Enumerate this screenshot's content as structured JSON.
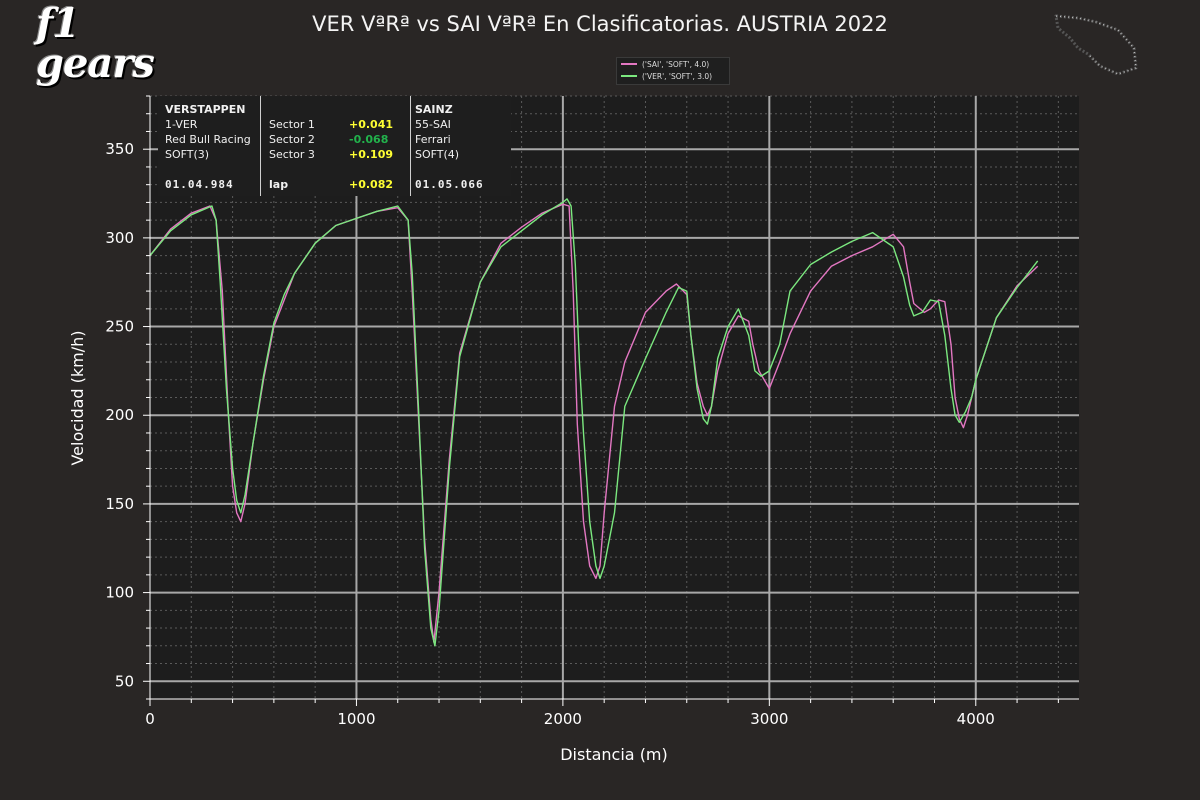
{
  "logo": {
    "text": "f1 gears"
  },
  "title": "VER VªRª vs SAI VªRª En Clasificatorias. AUSTRIA 2022",
  "legend": [
    {
      "label": "('SAI', 'SOFT', 4.0)",
      "color": "#e377c2"
    },
    {
      "label": "('VER', 'SOFT', 3.0)",
      "color": "#7be87f"
    }
  ],
  "infobox": {
    "driver1": {
      "name": "VERSTAPPEN",
      "code": "1-VER",
      "team": "Red Bull Racing",
      "tyre": "SOFT(3)",
      "lap_time": "01.04.984"
    },
    "driver2": {
      "name": "SAINZ",
      "code": "55-SAI",
      "team": "Ferrari",
      "tyre": "SOFT(4)",
      "lap_time": "01.05.066"
    },
    "sectors": [
      {
        "label": "Sector 1",
        "delta": "+0.041",
        "color": "#ffff33"
      },
      {
        "label": "Sector 2",
        "delta": "-0.068",
        "color": "#22b24c"
      },
      {
        "label": "Sector 3",
        "delta": "+0.109",
        "color": "#ffff33"
      }
    ],
    "lap": {
      "label": "lap",
      "delta": "+0.082",
      "color": "#ffff33"
    }
  },
  "chart_data": {
    "type": "line",
    "title": "VER VªRª vs SAI VªRª En Clasificatorias. AUSTRIA 2022",
    "xlabel": "Distancia (m)",
    "ylabel": "Velocidad (km/h)",
    "xlim": [
      0,
      4500
    ],
    "ylim": [
      40,
      380
    ],
    "xticks": [
      0,
      1000,
      2000,
      3000,
      4000
    ],
    "yticks": [
      50,
      100,
      150,
      200,
      250,
      300,
      350
    ],
    "grid": true,
    "legend_position": "top-center",
    "series": [
      {
        "name": "('SAI', 'SOFT', 4.0)",
        "color": "#e377c2",
        "x": [
          0,
          100,
          200,
          290,
          320,
          350,
          380,
          400,
          420,
          440,
          460,
          500,
          550,
          600,
          650,
          700,
          800,
          900,
          1000,
          1100,
          1200,
          1250,
          1270,
          1300,
          1330,
          1360,
          1375,
          1400,
          1450,
          1500,
          1600,
          1700,
          1800,
          1900,
          2000,
          2030,
          2050,
          2070,
          2100,
          2130,
          2160,
          2180,
          2200,
          2250,
          2300,
          2400,
          2500,
          2550,
          2600,
          2620,
          2650,
          2680,
          2700,
          2720,
          2750,
          2800,
          2850,
          2900,
          2920,
          2950,
          3000,
          3050,
          3100,
          3200,
          3300,
          3400,
          3500,
          3600,
          3650,
          3680,
          3700,
          3750,
          3780,
          3820,
          3850,
          3880,
          3900,
          3920,
          3940,
          3960,
          4000,
          4100,
          4200,
          4300
        ],
        "y": [
          290,
          305,
          314,
          318,
          310,
          270,
          200,
          160,
          145,
          140,
          150,
          185,
          220,
          250,
          265,
          280,
          297,
          307,
          311,
          315,
          317,
          310,
          270,
          200,
          130,
          85,
          72,
          100,
          175,
          235,
          275,
          297,
          306,
          314,
          319,
          318,
          270,
          195,
          140,
          115,
          108,
          115,
          145,
          205,
          230,
          258,
          270,
          274,
          268,
          245,
          218,
          205,
          200,
          205,
          225,
          246,
          256,
          253,
          240,
          225,
          215,
          230,
          246,
          270,
          284,
          290,
          295,
          302,
          295,
          275,
          263,
          258,
          260,
          265,
          264,
          240,
          210,
          198,
          193,
          200,
          220,
          255,
          273,
          284
        ]
      },
      {
        "name": "('VER', 'SOFT', 3.0)",
        "color": "#7be87f",
        "x": [
          0,
          100,
          200,
          300,
          320,
          340,
          370,
          400,
          420,
          440,
          460,
          500,
          550,
          600,
          650,
          700,
          800,
          900,
          1000,
          1100,
          1200,
          1250,
          1270,
          1300,
          1330,
          1360,
          1380,
          1400,
          1450,
          1500,
          1600,
          1700,
          1800,
          1900,
          2000,
          2020,
          2040,
          2060,
          2080,
          2100,
          2130,
          2160,
          2180,
          2200,
          2250,
          2300,
          2400,
          2500,
          2560,
          2600,
          2620,
          2650,
          2680,
          2700,
          2720,
          2750,
          2800,
          2850,
          2900,
          2930,
          2960,
          3000,
          3050,
          3100,
          3200,
          3300,
          3400,
          3500,
          3600,
          3650,
          3680,
          3700,
          3740,
          3780,
          3820,
          3850,
          3880,
          3900,
          3920,
          3950,
          3980,
          4000,
          4100,
          4200,
          4300
        ],
        "y": [
          290,
          304,
          313,
          318,
          310,
          275,
          215,
          170,
          152,
          145,
          155,
          185,
          222,
          252,
          268,
          280,
          297,
          307,
          311,
          315,
          318,
          310,
          280,
          205,
          125,
          80,
          70,
          90,
          170,
          233,
          275,
          295,
          304,
          313,
          320,
          322,
          318,
          285,
          230,
          190,
          140,
          115,
          108,
          115,
          145,
          205,
          232,
          258,
          272,
          270,
          245,
          215,
          198,
          195,
          205,
          232,
          250,
          260,
          245,
          225,
          222,
          225,
          240,
          270,
          285,
          292,
          298,
          303,
          295,
          278,
          262,
          256,
          258,
          265,
          264,
          245,
          215,
          200,
          196,
          202,
          210,
          220,
          255,
          272,
          287
        ]
      }
    ]
  }
}
